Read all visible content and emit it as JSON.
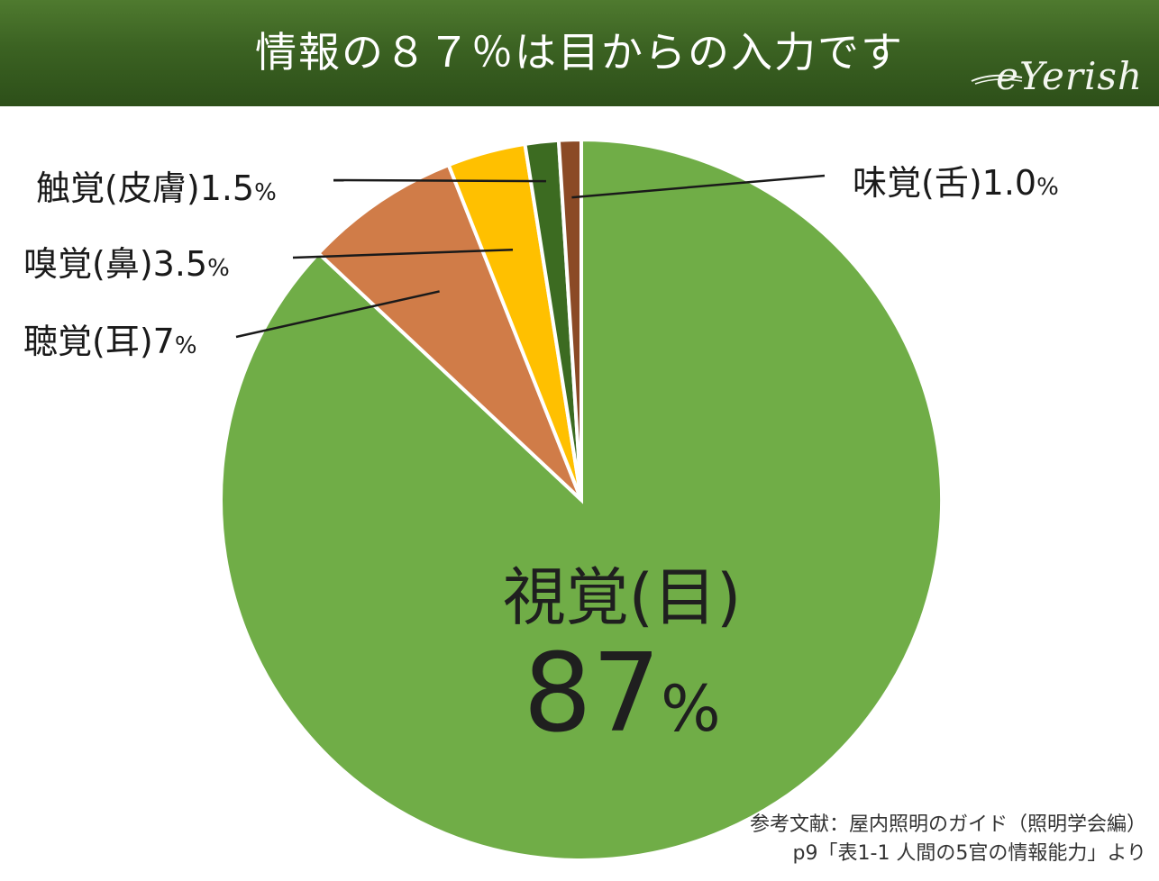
{
  "header": {
    "title": "情報の８７％は目からの入力です",
    "logo": "eYerish"
  },
  "chart_data": {
    "type": "pie",
    "title": "情報の８７％は目からの入力です",
    "slices": [
      {
        "name": "視覚(目)",
        "value": 87,
        "display": "87",
        "color": "#70ad47"
      },
      {
        "name": "聴覚(耳)",
        "value": 7,
        "display": "7",
        "color": "#d07c48"
      },
      {
        "name": "嗅覚(鼻)",
        "value": 3.5,
        "display": "3.5",
        "color": "#ffc000"
      },
      {
        "name": "触覚(皮膚)",
        "value": 1.5,
        "display": "1.5",
        "color": "#3c6b21"
      },
      {
        "name": "味覚(舌)",
        "value": 1.0,
        "display": "1.0",
        "color": "#8b4a26"
      }
    ],
    "percent_sign": "%"
  },
  "source": {
    "line1": "参考文献：屋内照明のガイド（照明学会編）",
    "line2": "p9「表1-1 人間の5官の情報能力」より"
  }
}
